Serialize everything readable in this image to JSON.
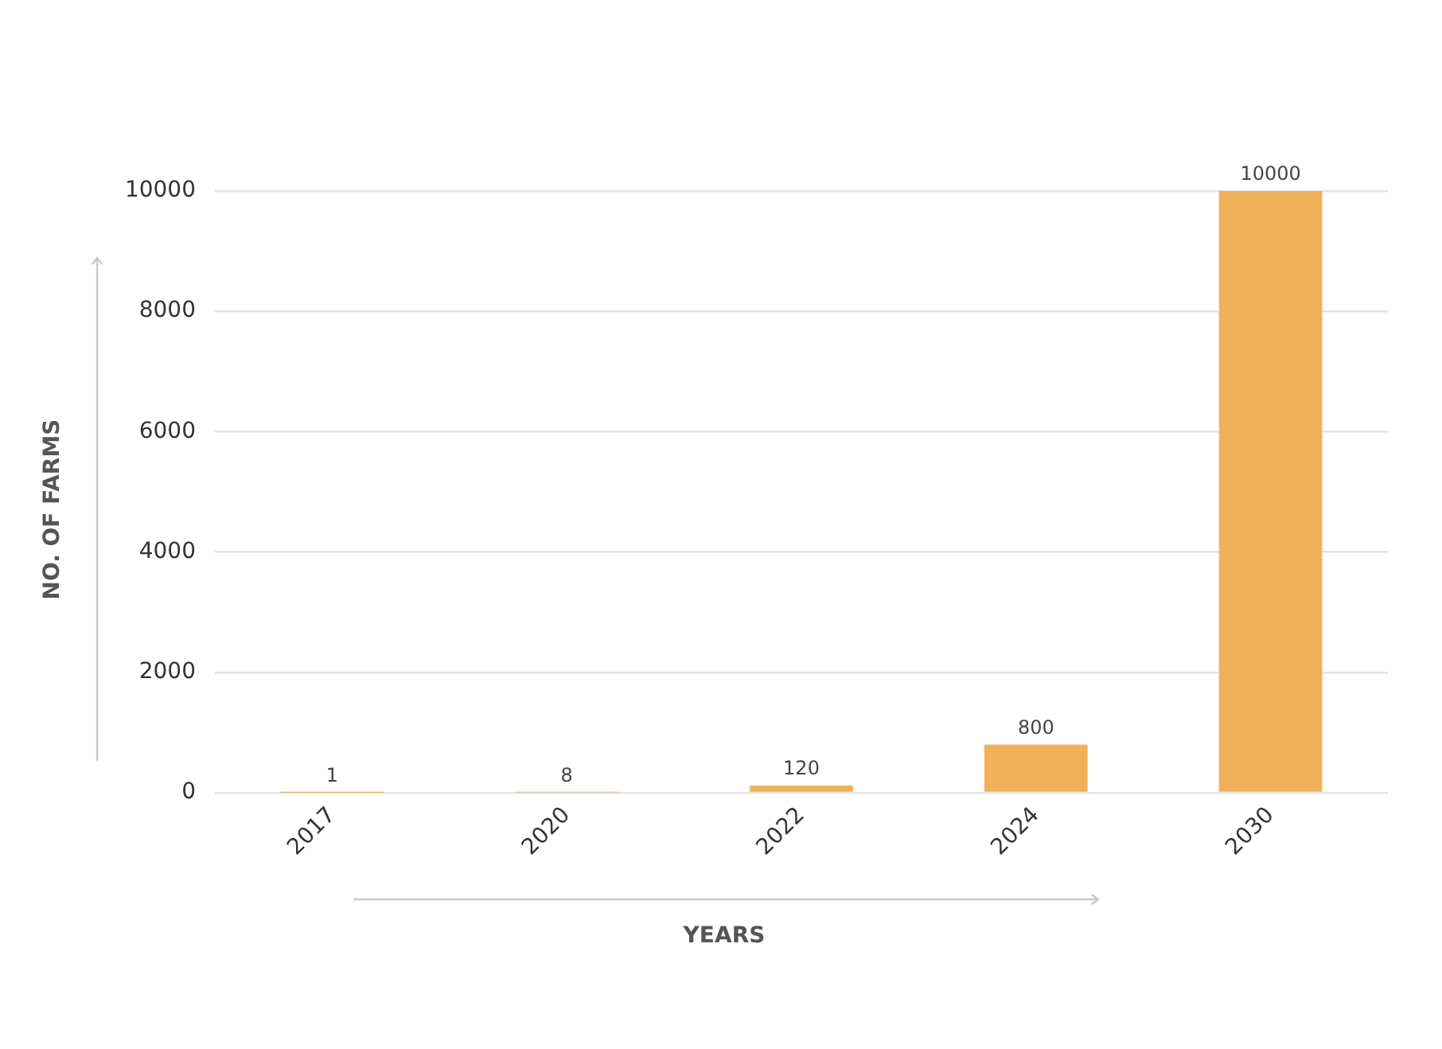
{
  "chart_data": {
    "type": "bar",
    "categories": [
      "2017",
      "2020",
      "2022",
      "2024",
      "2030"
    ],
    "values": [
      1,
      8,
      120,
      800,
      10000
    ],
    "color": "#f3b05a",
    "xlabel": "YEARS",
    "ylabel": "NO. OF FARMS",
    "ylim": [
      0,
      10000
    ],
    "yticks": [
      0,
      2000,
      4000,
      6000,
      8000,
      10000
    ],
    "grid": "y",
    "data_labels": true
  }
}
